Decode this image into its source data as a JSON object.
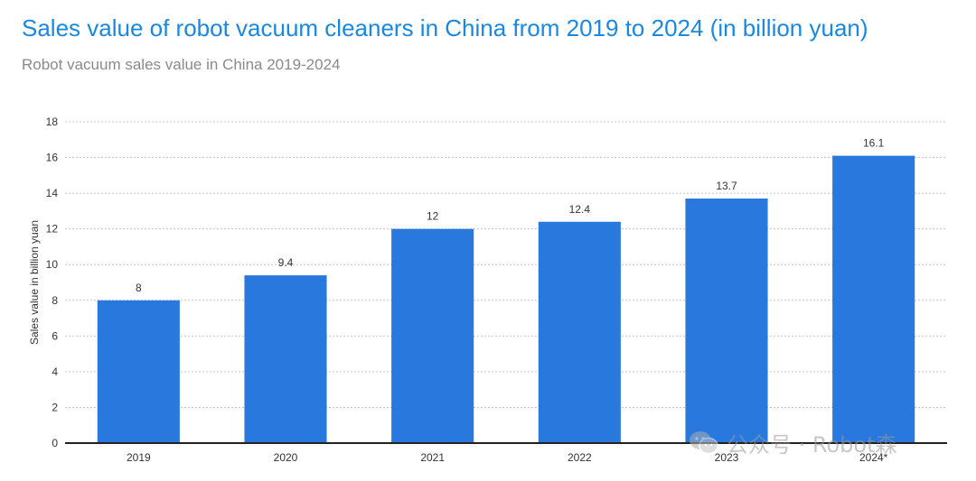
{
  "header": {
    "title": "Sales value of robot vacuum cleaners in China from 2019 to 2024 (in billion yuan)",
    "subtitle": "Robot vacuum sales value in China 2019-2024"
  },
  "watermark": {
    "text": "公众号 · Robot森",
    "icon": "wechat-icon"
  },
  "colors": {
    "bar": "#2878de",
    "title": "#1a88e0",
    "grid": "#c8c8c8",
    "axis": "#222222"
  },
  "chart_data": {
    "type": "bar",
    "title": "Sales value of robot vacuum cleaners in China from 2019 to 2024 (in billion yuan)",
    "subtitle": "Robot vacuum sales value in China 2019-2024",
    "xlabel": "",
    "ylabel": "Sales value in billion yuan",
    "categories": [
      "2019",
      "2020",
      "2021",
      "2022",
      "2023",
      "2024*"
    ],
    "values": [
      8,
      9.4,
      12,
      12.4,
      13.7,
      16.1
    ],
    "data_labels": [
      "8",
      "9.4",
      "12",
      "12.4",
      "13.7",
      "16.1"
    ],
    "ylim": [
      0,
      18
    ],
    "yticks": [
      0,
      2,
      4,
      6,
      8,
      10,
      12,
      14,
      16,
      18
    ],
    "grid": true,
    "legend": "none"
  }
}
